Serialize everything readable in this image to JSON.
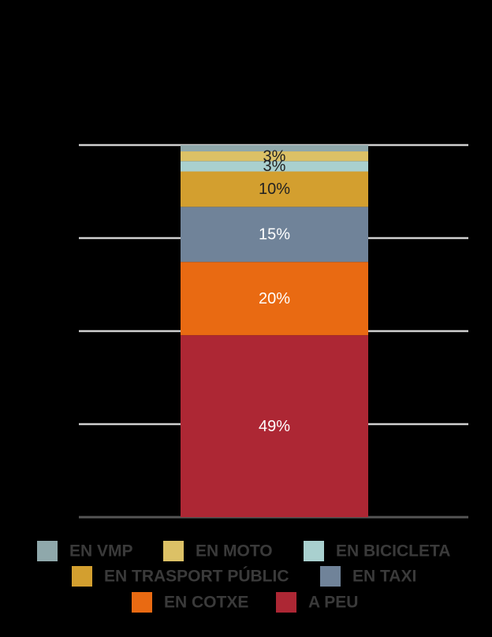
{
  "chart_data": {
    "type": "stacked_bar",
    "ylim": [
      0,
      100
    ],
    "yticks": [
      0,
      25,
      50,
      75,
      100
    ],
    "grid": true,
    "series": [
      {
        "name": "EN VMP",
        "color": "#8fa8ab",
        "values": [
          1.7
        ],
        "value_labels": [
          null
        ]
      },
      {
        "name": "EN MOTO",
        "color": "#dcc166",
        "values": [
          2.6
        ],
        "value_labels": [
          "3%"
        ]
      },
      {
        "name": "EN BICICLETA",
        "color": "#a9d0cf",
        "values": [
          2.8
        ],
        "value_labels": [
          "3%"
        ]
      },
      {
        "name": "EN TRASPORT PÚBLIC",
        "color": "#d39f2f",
        "values": [
          9.5
        ],
        "value_labels": [
          "10%"
        ]
      },
      {
        "name": "EN TAXI",
        "color": "#708399",
        "values": [
          14.8
        ],
        "value_labels": [
          "15%"
        ]
      },
      {
        "name": "EN COTXE",
        "color": "#e96a12",
        "values": [
          19.7
        ],
        "value_labels": [
          "20%"
        ]
      },
      {
        "name": "A PEU",
        "color": "#ad2734",
        "values": [
          48.9
        ],
        "value_labels": [
          "49%"
        ]
      }
    ]
  }
}
